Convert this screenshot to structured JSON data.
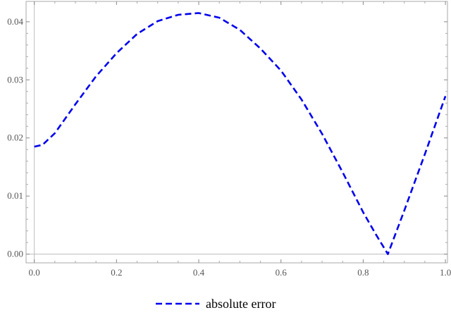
{
  "chart_data": {
    "type": "line",
    "title": "",
    "xlabel": "",
    "ylabel": "",
    "xlim": [
      -0.02,
      1.005
    ],
    "ylim": [
      -0.0015,
      0.0435
    ],
    "xticks": [
      0.0,
      0.2,
      0.4,
      0.6,
      0.8,
      1.0
    ],
    "xtick_labels": [
      "0.0",
      "0.2",
      "0.4",
      "0.6",
      "0.8",
      "1.0"
    ],
    "yticks": [
      0.0,
      0.01,
      0.02,
      0.03,
      0.04
    ],
    "ytick_labels": [
      "0.00",
      "0.01",
      "0.02",
      "0.03",
      "0.04"
    ],
    "grid": false,
    "legend_position": "bottom-center",
    "series": [
      {
        "name": "absolute error",
        "color": "#0000ee",
        "line_style": "dashed",
        "x": [
          0.0,
          0.02,
          0.05,
          0.1,
          0.15,
          0.2,
          0.25,
          0.3,
          0.35,
          0.4,
          0.45,
          0.5,
          0.55,
          0.6,
          0.65,
          0.7,
          0.75,
          0.8,
          0.83,
          0.86,
          0.9,
          0.95,
          1.0
        ],
        "y": [
          0.0185,
          0.0188,
          0.0208,
          0.0258,
          0.0306,
          0.0346,
          0.0379,
          0.0401,
          0.0412,
          0.0415,
          0.0407,
          0.0386,
          0.0354,
          0.0316,
          0.0266,
          0.0207,
          0.0141,
          0.0072,
          0.0035,
          0.0,
          0.0075,
          0.0172,
          0.0272
        ]
      }
    ]
  }
}
